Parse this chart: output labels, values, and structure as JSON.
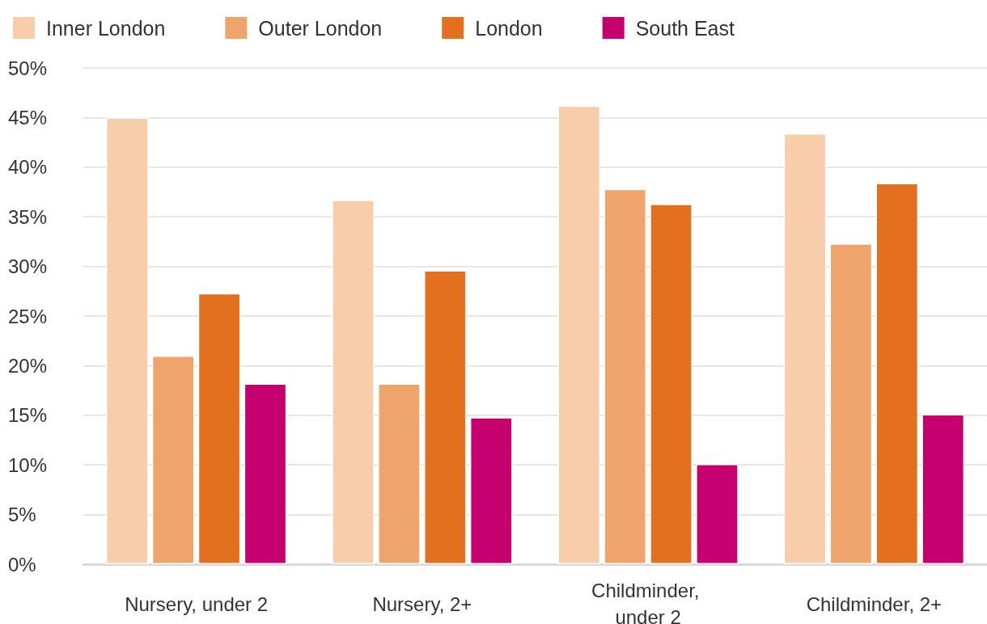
{
  "chart_data": {
    "type": "bar",
    "categories": [
      "Nursery, under 2",
      "Nursery, 2+",
      "Childminder, under 2",
      "Childminder, 2+"
    ],
    "series": [
      {
        "name": "Inner London",
        "color": "#f8cdaa",
        "values": [
          45.0,
          36.7,
          46.2,
          43.4
        ]
      },
      {
        "name": "Outer London",
        "color": "#efa46c",
        "values": [
          21.0,
          18.2,
          37.8,
          32.3
        ]
      },
      {
        "name": "London",
        "color": "#e3701e",
        "values": [
          27.3,
          29.6,
          36.3,
          38.4
        ]
      },
      {
        "name": "South East",
        "color": "#c7006f",
        "values": [
          18.2,
          14.8,
          10.1,
          15.1
        ]
      }
    ],
    "ylim": [
      0,
      50
    ],
    "yticks": [
      {
        "value": 0,
        "label": "0%"
      },
      {
        "value": 5,
        "label": "5%"
      },
      {
        "value": 10,
        "label": "10%"
      },
      {
        "value": 15,
        "label": "15%"
      },
      {
        "value": 20,
        "label": "20%"
      },
      {
        "value": 25,
        "label": "25%"
      },
      {
        "value": 30,
        "label": "30%"
      },
      {
        "value": 35,
        "label": "35%"
      },
      {
        "value": 40,
        "label": "40%"
      },
      {
        "value": 45,
        "label": "45%"
      },
      {
        "value": 50,
        "label": "50%"
      }
    ],
    "grid": "y",
    "legend": "top left"
  }
}
